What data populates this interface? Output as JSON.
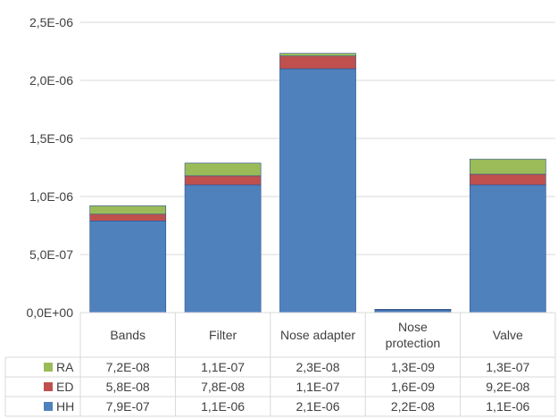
{
  "chart_data": {
    "type": "bar",
    "stacked": true,
    "categories": [
      "Bands",
      "Filter",
      "Nose adapter",
      "Nose protection",
      "Valve"
    ],
    "category_lines": [
      [
        "Bands"
      ],
      [
        "Filter"
      ],
      [
        "Nose adapter"
      ],
      [
        "Nose",
        "protection"
      ],
      [
        "Valve"
      ]
    ],
    "series": [
      {
        "name": "HH",
        "values": [
          7.9e-07,
          1.1e-06,
          2.1e-06,
          2.2e-08,
          1.1e-06
        ],
        "labels": [
          "7,9E-07",
          "1,1E-06",
          "2,1E-06",
          "2,2E-08",
          "1,1E-06"
        ],
        "color": "#4f81bd"
      },
      {
        "name": "ED",
        "values": [
          5.8e-08,
          7.8e-08,
          1.1e-07,
          1.6e-09,
          9.2e-08
        ],
        "labels": [
          "5,8E-08",
          "7,8E-08",
          "1,1E-07",
          "1,6E-09",
          "9,2E-08"
        ],
        "color": "#c0504d"
      },
      {
        "name": "RA",
        "values": [
          7.2e-08,
          1.1e-07,
          2.3e-08,
          1.3e-09,
          1.3e-07
        ],
        "labels": [
          "7,2E-08",
          "1,1E-07",
          "2,3E-08",
          "1,3E-09",
          "1,3E-07"
        ],
        "color": "#9bbb59"
      }
    ],
    "ylim": [
      0,
      2.5e-06
    ],
    "yticks": [
      0,
      5e-07,
      1e-06,
      1.5e-06,
      2e-06,
      2.5e-06
    ],
    "ytick_labels": [
      "0,0E+00",
      "5,0E-07",
      "1,0E-06",
      "1,5E-06",
      "2,0E-06",
      "2,5E-06"
    ],
    "title": "",
    "xlabel": "",
    "ylabel": "",
    "grid": true,
    "legend": "data-table"
  }
}
